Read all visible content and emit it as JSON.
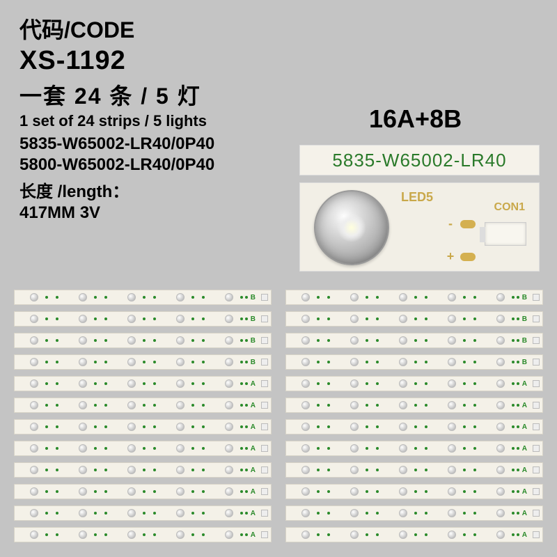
{
  "header": {
    "code_label_cn": "代码",
    "code_label_en": "/CODE",
    "product_code": "XS-1192",
    "set_desc_cn": "一套 24 条 / 5 灯",
    "set_desc_en": "1 set of 24 strips / 5 lights",
    "part_no_1": "5835-W65002-LR40/0P40",
    "part_no_2": "5800-W65002-LR40/0P40",
    "length_label": "长度 /length：",
    "length_value": "417MM  3V"
  },
  "config_label": "16A+8B",
  "label_strip_text": "5835-W65002-LR40",
  "led_module": {
    "led_label": "LED5",
    "con_label": "CON1",
    "pad_minus": "-",
    "pad_plus": "+"
  },
  "strips": {
    "count_per_column": 12,
    "columns": 2,
    "b_rows": [
      0,
      1,
      2,
      3
    ],
    "a_rows": [
      4,
      5,
      6,
      7,
      8,
      9,
      10,
      11
    ],
    "tag_a": "A",
    "tag_b": "B",
    "led_positions_pct": [
      6,
      25,
      44,
      63,
      82
    ],
    "dot_positions_pct": [
      12,
      16,
      31,
      35,
      50,
      54,
      69,
      73,
      88,
      90
    ],
    "strip_bg": "#f4f1e8",
    "dot_color": "#2a8a2a"
  },
  "colors": {
    "page_bg": "#c4c4c4",
    "text": "#000000",
    "pcb_text": "#c9a84a",
    "pcb_green": "#2a7a2a",
    "pad_gold": "#d4b050"
  }
}
